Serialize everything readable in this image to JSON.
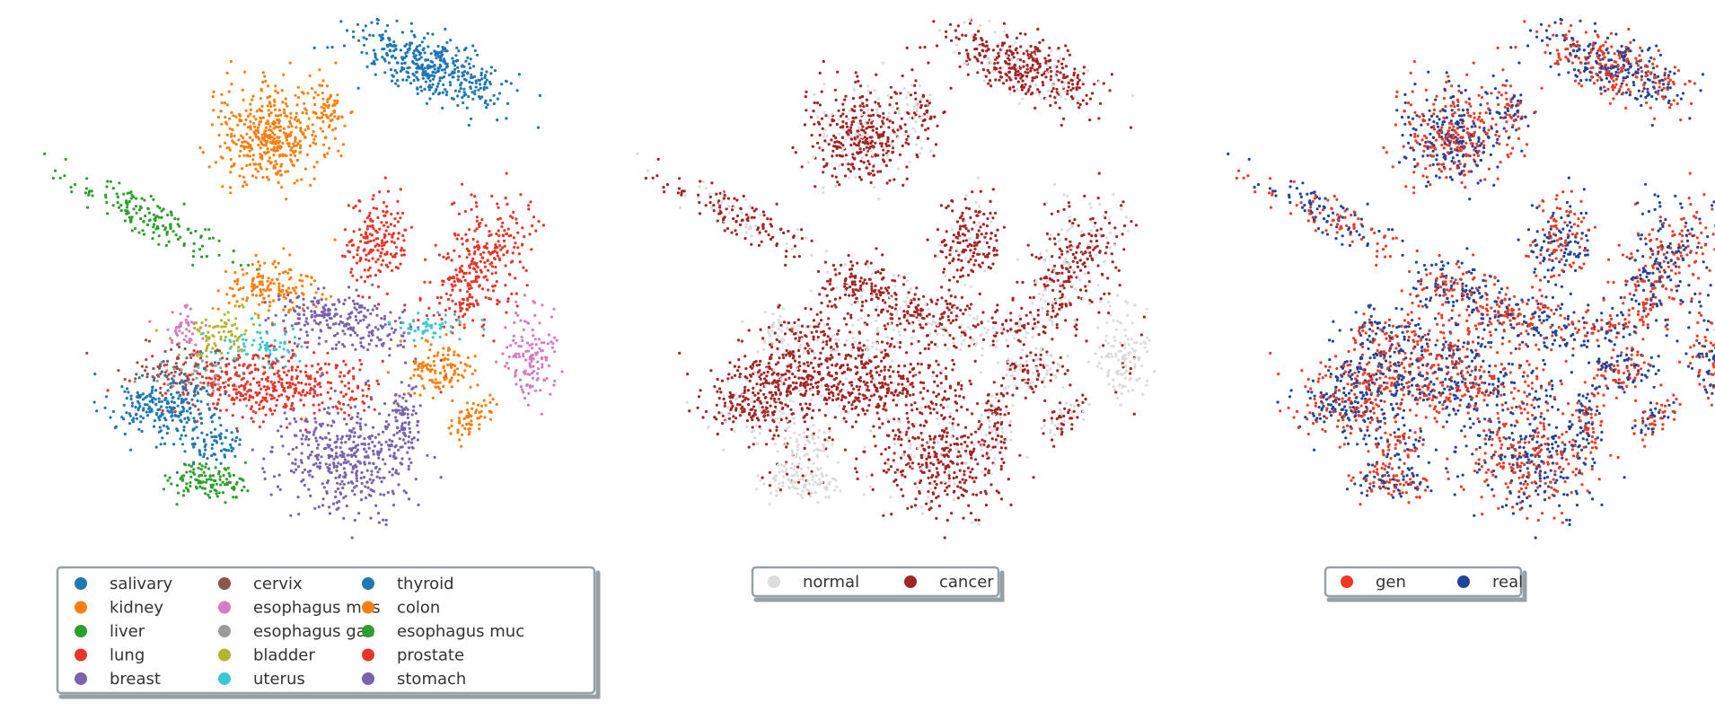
{
  "chart_data": [
    {
      "type": "scatter",
      "title": "",
      "xlabel": "",
      "ylabel": "",
      "grid": false,
      "axes_visible": false,
      "legend_placement": "bottom",
      "legend_columns": 3,
      "colors": {
        "salivary": "#1f77b4",
        "kidney": "#ff7f0e",
        "liver": "#2ca02c",
        "lung": "#e8352a",
        "breast": "#7b62b0",
        "cervix": "#8c564b",
        "esophagus mus": "#d67bc5",
        "esophagus gas": "#9a9a9a",
        "bladder": "#b3b52f",
        "uterus": "#3cc7d8",
        "thyroid": "#1f77b4",
        "colon": "#ff7f0e",
        "esophagus muc": "#2ca02c",
        "prostate": "#e8352a",
        "stomach": "#7b62b0"
      },
      "series": [
        {
          "name": "salivary"
        },
        {
          "name": "kidney"
        },
        {
          "name": "liver"
        },
        {
          "name": "lung"
        },
        {
          "name": "breast"
        },
        {
          "name": "cervix"
        },
        {
          "name": "esophagus mus"
        },
        {
          "name": "esophagus gas"
        },
        {
          "name": "bladder"
        },
        {
          "name": "uterus"
        },
        {
          "name": "thyroid"
        },
        {
          "name": "colon"
        },
        {
          "name": "esophagus muc"
        },
        {
          "name": "prostate"
        },
        {
          "name": "stomach"
        }
      ]
    },
    {
      "type": "scatter",
      "title": "",
      "xlabel": "",
      "ylabel": "",
      "grid": false,
      "axes_visible": false,
      "legend_placement": "bottom",
      "legend_columns": 2,
      "colors": {
        "normal": "#dcdcdc",
        "cancer": "#a32424"
      },
      "series": [
        {
          "name": "normal"
        },
        {
          "name": "cancer"
        }
      ]
    },
    {
      "type": "scatter",
      "title": "",
      "xlabel": "",
      "ylabel": "",
      "grid": false,
      "axes_visible": false,
      "legend_placement": "bottom",
      "legend_columns": 2,
      "colors": {
        "gen": "#f03a22",
        "real": "#1f449c"
      },
      "series": [
        {
          "name": "gen"
        },
        {
          "name": "real"
        }
      ]
    }
  ]
}
